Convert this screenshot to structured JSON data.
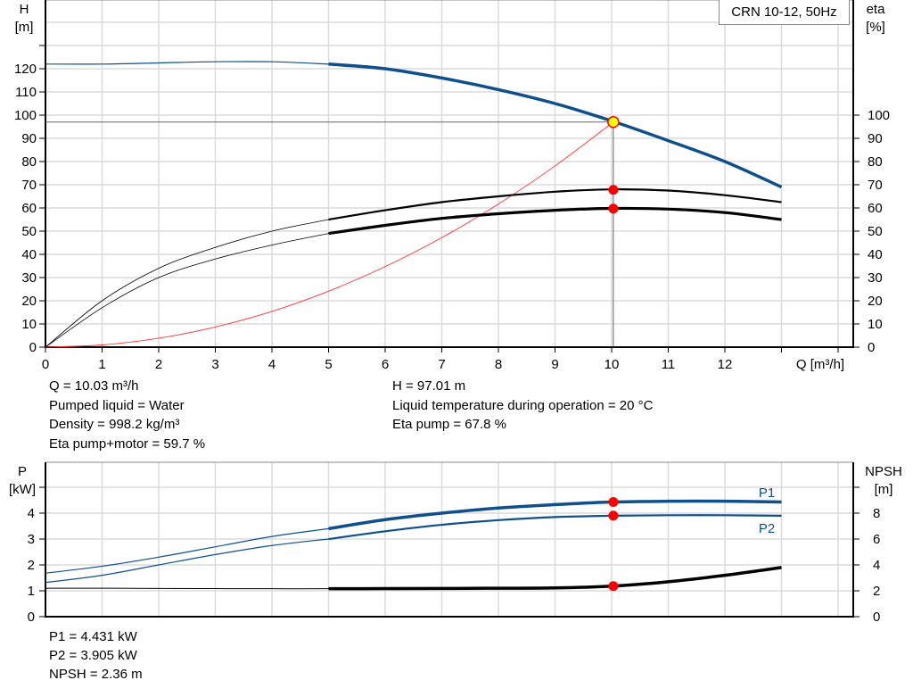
{
  "chart_data": [
    {
      "type": "line",
      "title": "CRN 10-12, 50Hz",
      "xlabel": "Q [m³/h]",
      "ylabel_left": [
        "H",
        "[m]"
      ],
      "ylabel_right": [
        "eta",
        "[%]"
      ],
      "xlim": [
        0,
        14
      ],
      "ylim_left": [
        0,
        150
      ],
      "ylim_right": [
        0,
        150
      ],
      "x_ticks": [
        0,
        1,
        2,
        3,
        4,
        5,
        6,
        7,
        8,
        9,
        10,
        11,
        12
      ],
      "y_ticks_left": [
        0,
        10,
        20,
        30,
        40,
        50,
        60,
        70,
        80,
        90,
        100,
        110,
        120
      ],
      "y_ticks_right": [
        0,
        10,
        20,
        30,
        40,
        50,
        60,
        70,
        80,
        90,
        100
      ],
      "grid": true,
      "x": [
        0,
        1,
        2,
        3,
        4,
        5,
        6,
        7,
        8,
        9,
        10,
        11,
        12,
        13
      ],
      "series": [
        {
          "key": "H",
          "axis": "left",
          "color": "#0f4f8c",
          "values": [
            122,
            122,
            122.5,
            123,
            123,
            122,
            120,
            116,
            111,
            105,
            97.5,
            89,
            80,
            69
          ]
        },
        {
          "key": "eta_pump",
          "axis": "right",
          "color": "#000000",
          "values": [
            0,
            20,
            34,
            43,
            50,
            55,
            59,
            62.5,
            65,
            67,
            68,
            67.5,
            65.5,
            62.5
          ]
        },
        {
          "key": "eta_pump_motor",
          "axis": "right",
          "color": "#000000",
          "values": [
            0,
            17,
            30,
            38,
            44,
            49,
            52.5,
            55.5,
            57.5,
            59,
            59.8,
            59.5,
            58,
            55
          ]
        },
        {
          "key": "system_curve",
          "axis": "left",
          "color": "#ff3030",
          "x": [
            0,
            1,
            2,
            3,
            4,
            5,
            6,
            7,
            8,
            9,
            10.03
          ],
          "values": [
            0,
            0.96,
            3.86,
            8.7,
            15.4,
            24.1,
            34.7,
            47.2,
            61.7,
            78.1,
            97.01
          ]
        }
      ],
      "operating_point": {
        "Q": 10.03,
        "H": 97.01,
        "eta_pump": 67.8,
        "eta_pump_motor": 59.7
      }
    },
    {
      "type": "line",
      "ylabel_left": [
        "P",
        "[kW]"
      ],
      "ylabel_right": [
        "NPSH",
        "[m]"
      ],
      "xlim": [
        0,
        14
      ],
      "ylim_left": [
        0,
        6
      ],
      "ylim_right": [
        0,
        12
      ],
      "y_ticks_left": [
        0,
        1,
        2,
        3,
        4
      ],
      "y_ticks_right": [
        0,
        2,
        4,
        6,
        8
      ],
      "grid": true,
      "x": [
        0,
        1,
        2,
        3,
        4,
        5,
        6,
        7,
        8,
        9,
        10,
        11,
        12,
        13
      ],
      "series": [
        {
          "name": "P1",
          "axis": "left",
          "color": "#0f4f8c",
          "values": [
            1.68,
            1.95,
            2.3,
            2.7,
            3.1,
            3.4,
            3.75,
            4.0,
            4.2,
            4.33,
            4.43,
            4.46,
            4.46,
            4.43
          ]
        },
        {
          "name": "P2",
          "axis": "left",
          "color": "#0f4f8c",
          "values": [
            1.32,
            1.6,
            2.0,
            2.4,
            2.75,
            3.0,
            3.3,
            3.55,
            3.73,
            3.85,
            3.9,
            3.92,
            3.92,
            3.9
          ]
        },
        {
          "key": "NPSH",
          "axis": "right",
          "color": "#000000",
          "values": [
            2.2,
            2.2,
            2.18,
            2.17,
            2.16,
            2.16,
            2.17,
            2.18,
            2.2,
            2.22,
            2.36,
            2.7,
            3.2,
            3.8
          ]
        }
      ],
      "operating_point": {
        "Q": 10.03,
        "P1": 4.431,
        "P2": 3.905,
        "NPSH": 2.36
      }
    }
  ],
  "info_top_left": [
    "Q = 10.03 m³/h",
    "Pumped liquid = Water",
    "Density = 998.2 kg/m³",
    "Eta pump+motor = 59.7 %"
  ],
  "info_top_right": [
    "H = 97.01 m",
    "Liquid temperature during operation = 20 °C",
    "Eta pump = 67.8 %"
  ],
  "info_bottom": [
    "P1 = 4.431 kW",
    "P2 = 3.905 kW",
    "NPSH = 2.36 m"
  ]
}
